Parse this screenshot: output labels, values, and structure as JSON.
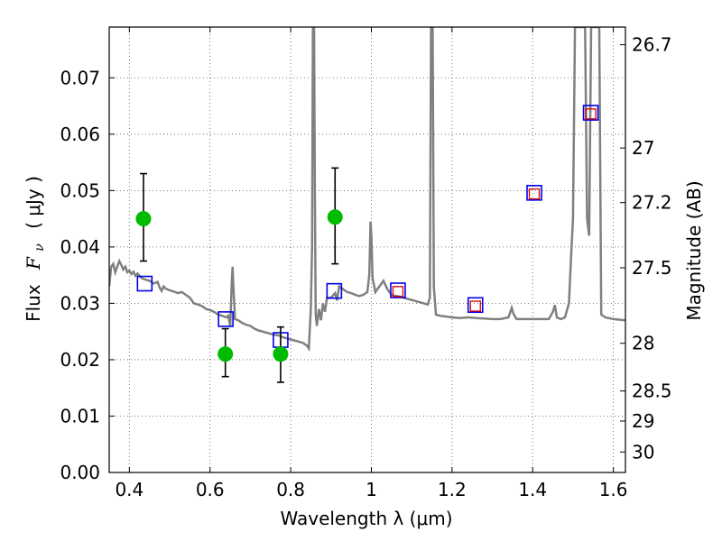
{
  "chart_data": {
    "type": "scatter",
    "xlabel": "Wavelength  λ (μm)",
    "ylabel_left_prefix": "Flux",
    "ylabel_left_symbol": "F",
    "ylabel_left_subscript": "ν",
    "ylabel_left_unit": "( μJy )",
    "ylabel_right": "Magnitude (AB)",
    "xlim": [
      0.35,
      1.63
    ],
    "ylim": [
      0.0,
      0.079
    ],
    "grid": true,
    "x_ticks": [
      {
        "value": 0.4,
        "label": "0.4"
      },
      {
        "value": 0.6,
        "label": "0.6"
      },
      {
        "value": 0.8,
        "label": "0.8"
      },
      {
        "value": 1.0,
        "label": "1"
      },
      {
        "value": 1.2,
        "label": "1.2"
      },
      {
        "value": 1.4,
        "label": "1.4"
      },
      {
        "value": 1.6,
        "label": "1.6"
      }
    ],
    "y_ticks": [
      {
        "value": 0.0,
        "label": "0.00"
      },
      {
        "value": 0.01,
        "label": "0.01"
      },
      {
        "value": 0.02,
        "label": "0.02"
      },
      {
        "value": 0.03,
        "label": "0.03"
      },
      {
        "value": 0.04,
        "label": "0.04"
      },
      {
        "value": 0.05,
        "label": "0.05"
      },
      {
        "value": 0.06,
        "label": "0.06"
      },
      {
        "value": 0.07,
        "label": "0.07"
      }
    ],
    "right_ticks": [
      {
        "mag": 26.7,
        "label": "26.7"
      },
      {
        "mag": 27.0,
        "label": "27"
      },
      {
        "mag": 27.2,
        "label": "27.2"
      },
      {
        "mag": 27.5,
        "label": "27.5"
      },
      {
        "mag": 28.0,
        "label": "28"
      },
      {
        "mag": 28.5,
        "label": "28.5"
      },
      {
        "mag": 29.0,
        "label": "29"
      },
      {
        "mag": 30.0,
        "label": "30"
      }
    ],
    "model_spectrum": {
      "color": "#808080",
      "points": [
        [
          0.35,
          0.033
        ],
        [
          0.355,
          0.0365
        ],
        [
          0.36,
          0.037
        ],
        [
          0.365,
          0.0355
        ],
        [
          0.37,
          0.0365
        ],
        [
          0.375,
          0.0375
        ],
        [
          0.38,
          0.0368
        ],
        [
          0.385,
          0.036
        ],
        [
          0.39,
          0.0365
        ],
        [
          0.395,
          0.0355
        ],
        [
          0.4,
          0.0358
        ],
        [
          0.405,
          0.0352
        ],
        [
          0.41,
          0.0356
        ],
        [
          0.415,
          0.0349
        ],
        [
          0.42,
          0.0353
        ],
        [
          0.43,
          0.0345
        ],
        [
          0.44,
          0.0342
        ],
        [
          0.45,
          0.034
        ],
        [
          0.46,
          0.0335
        ],
        [
          0.47,
          0.0338
        ],
        [
          0.475,
          0.0328
        ],
        [
          0.48,
          0.0322
        ],
        [
          0.485,
          0.033
        ],
        [
          0.49,
          0.0326
        ],
        [
          0.5,
          0.0323
        ],
        [
          0.51,
          0.0321
        ],
        [
          0.52,
          0.0318
        ],
        [
          0.53,
          0.032
        ],
        [
          0.54,
          0.0315
        ],
        [
          0.55,
          0.031
        ],
        [
          0.56,
          0.03
        ],
        [
          0.57,
          0.0298
        ],
        [
          0.58,
          0.0295
        ],
        [
          0.59,
          0.029
        ],
        [
          0.6,
          0.0288
        ],
        [
          0.61,
          0.0285
        ],
        [
          0.62,
          0.028
        ],
        [
          0.63,
          0.0278
        ],
        [
          0.64,
          0.0275
        ],
        [
          0.645,
          0.0278
        ],
        [
          0.65,
          0.026
        ],
        [
          0.654,
          0.034
        ],
        [
          0.656,
          0.0365
        ],
        [
          0.658,
          0.033
        ],
        [
          0.662,
          0.0272
        ],
        [
          0.67,
          0.027
        ],
        [
          0.68,
          0.0265
        ],
        [
          0.69,
          0.0262
        ],
        [
          0.7,
          0.026
        ],
        [
          0.71,
          0.0255
        ],
        [
          0.72,
          0.0252
        ],
        [
          0.73,
          0.025
        ],
        [
          0.74,
          0.0248
        ],
        [
          0.75,
          0.0246
        ],
        [
          0.76,
          0.0244
        ],
        [
          0.77,
          0.0243
        ],
        [
          0.78,
          0.024
        ],
        [
          0.79,
          0.0238
        ],
        [
          0.8,
          0.0236
        ],
        [
          0.81,
          0.0234
        ],
        [
          0.82,
          0.0232
        ],
        [
          0.83,
          0.023
        ],
        [
          0.84,
          0.0225
        ],
        [
          0.845,
          0.022
        ],
        [
          0.85,
          0.029
        ],
        [
          0.853,
          0.04
        ],
        [
          0.855,
          0.079
        ],
        [
          0.858,
          0.079
        ],
        [
          0.86,
          0.05
        ],
        [
          0.862,
          0.028
        ],
        [
          0.865,
          0.026
        ],
        [
          0.87,
          0.029
        ],
        [
          0.875,
          0.027
        ],
        [
          0.88,
          0.03
        ],
        [
          0.885,
          0.0285
        ],
        [
          0.89,
          0.031
        ],
        [
          0.9,
          0.031
        ],
        [
          0.91,
          0.0318
        ],
        [
          0.915,
          0.0305
        ],
        [
          0.92,
          0.033
        ],
        [
          0.93,
          0.0325
        ],
        [
          0.94,
          0.032
        ],
        [
          0.95,
          0.0318
        ],
        [
          0.96,
          0.0315
        ],
        [
          0.97,
          0.0313
        ],
        [
          0.98,
          0.0315
        ],
        [
          0.99,
          0.032
        ],
        [
          0.995,
          0.035
        ],
        [
          0.998,
          0.0445
        ],
        [
          1.0,
          0.042
        ],
        [
          1.003,
          0.0345
        ],
        [
          1.01,
          0.032
        ],
        [
          1.02,
          0.033
        ],
        [
          1.03,
          0.034
        ],
        [
          1.04,
          0.0325
        ],
        [
          1.05,
          0.0315
        ],
        [
          1.06,
          0.0313
        ],
        [
          1.07,
          0.0312
        ],
        [
          1.08,
          0.031
        ],
        [
          1.09,
          0.0308
        ],
        [
          1.1,
          0.0306
        ],
        [
          1.11,
          0.0304
        ],
        [
          1.12,
          0.0302
        ],
        [
          1.13,
          0.03
        ],
        [
          1.14,
          0.0298
        ],
        [
          1.145,
          0.031
        ],
        [
          1.148,
          0.079
        ],
        [
          1.152,
          0.079
        ],
        [
          1.155,
          0.033
        ],
        [
          1.16,
          0.028
        ],
        [
          1.17,
          0.0278
        ],
        [
          1.18,
          0.0277
        ],
        [
          1.19,
          0.0276
        ],
        [
          1.2,
          0.0275
        ],
        [
          1.22,
          0.0274
        ],
        [
          1.24,
          0.0275
        ],
        [
          1.26,
          0.0274
        ],
        [
          1.28,
          0.0273
        ],
        [
          1.3,
          0.0272
        ],
        [
          1.32,
          0.0272
        ],
        [
          1.34,
          0.0275
        ],
        [
          1.348,
          0.0292
        ],
        [
          1.352,
          0.0282
        ],
        [
          1.36,
          0.0272
        ],
        [
          1.38,
          0.0272
        ],
        [
          1.4,
          0.0272
        ],
        [
          1.42,
          0.0272
        ],
        [
          1.44,
          0.0272
        ],
        [
          1.45,
          0.0285
        ],
        [
          1.455,
          0.0297
        ],
        [
          1.46,
          0.0275
        ],
        [
          1.47,
          0.0272
        ],
        [
          1.48,
          0.0275
        ],
        [
          1.49,
          0.03
        ],
        [
          1.495,
          0.038
        ],
        [
          1.5,
          0.045
        ],
        [
          1.505,
          0.079
        ],
        [
          1.51,
          0.079
        ],
        [
          1.52,
          0.079
        ],
        [
          1.53,
          0.079
        ],
        [
          1.535,
          0.045
        ],
        [
          1.54,
          0.042
        ],
        [
          1.545,
          0.079
        ],
        [
          1.555,
          0.079
        ],
        [
          1.565,
          0.079
        ],
        [
          1.57,
          0.028
        ],
        [
          1.58,
          0.0275
        ],
        [
          1.6,
          0.0272
        ],
        [
          1.63,
          0.027
        ]
      ]
    },
    "green_points": {
      "color": "#00bb00",
      "points": [
        {
          "x": 0.435,
          "y": 0.045,
          "err_low": 0.0375,
          "err_high": 0.053
        },
        {
          "x": 0.638,
          "y": 0.021,
          "err_low": 0.017,
          "err_high": 0.0255
        },
        {
          "x": 0.775,
          "y": 0.021,
          "err_low": 0.016,
          "err_high": 0.0258
        },
        {
          "x": 0.91,
          "y": 0.0453,
          "err_low": 0.037,
          "err_high": 0.054
        }
      ]
    },
    "blue_squares": {
      "color": "#0000ee",
      "points": [
        {
          "x": 0.438,
          "y": 0.0335
        },
        {
          "x": 0.639,
          "y": 0.0272
        },
        {
          "x": 0.775,
          "y": 0.0235
        },
        {
          "x": 0.908,
          "y": 0.0322
        },
        {
          "x": 1.066,
          "y": 0.0323
        },
        {
          "x": 1.258,
          "y": 0.0297
        },
        {
          "x": 1.404,
          "y": 0.0496
        },
        {
          "x": 1.544,
          "y": 0.0638
        }
      ]
    },
    "red_squares": {
      "color": "#dd0000",
      "points": [
        {
          "x": 1.066,
          "y": 0.0321
        },
        {
          "x": 1.258,
          "y": 0.0295
        },
        {
          "x": 1.404,
          "y": 0.0494
        },
        {
          "x": 1.544,
          "y": 0.0636
        }
      ]
    }
  }
}
